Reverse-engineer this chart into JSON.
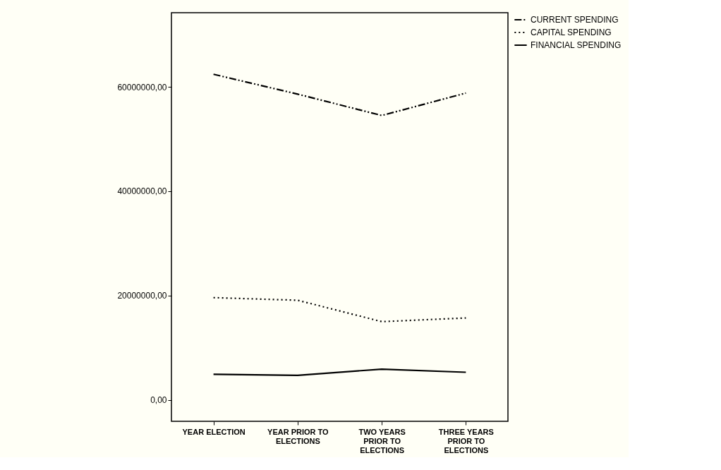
{
  "chart_data": {
    "type": "line",
    "categories": [
      "YEAR ELECTION",
      "YEAR PRIOR TO ELECTIONS",
      "TWO YEARS PRIOR TO ELECTIONS",
      "THREE YEARS PRIOR TO ELECTIONS"
    ],
    "series": [
      {
        "name": "CURRENT SPENDING",
        "color": "#000000",
        "line_style": "dashed",
        "values": [
          62400000,
          58600000,
          54500000,
          58800000
        ]
      },
      {
        "name": "CAPITAL SPENDING",
        "color": "#000000",
        "line_style": "dotted",
        "values": [
          19600000,
          19100000,
          15000000,
          15700000
        ]
      },
      {
        "name": "FINANCIAL SPENDING",
        "color": "#000000",
        "line_style": "solid",
        "values": [
          4900000,
          4700000,
          5900000,
          5300000
        ]
      }
    ],
    "ylim": [
      -4100000,
      74200000
    ],
    "yticks": [
      {
        "value": 0,
        "label": "0,00"
      },
      {
        "value": 20000000,
        "label": "20000000,00"
      },
      {
        "value": 40000000,
        "label": "40000000,00"
      },
      {
        "value": 60000000,
        "label": "60000000,00"
      }
    ],
    "grid": false,
    "legend": "top right",
    "marker": "none"
  }
}
